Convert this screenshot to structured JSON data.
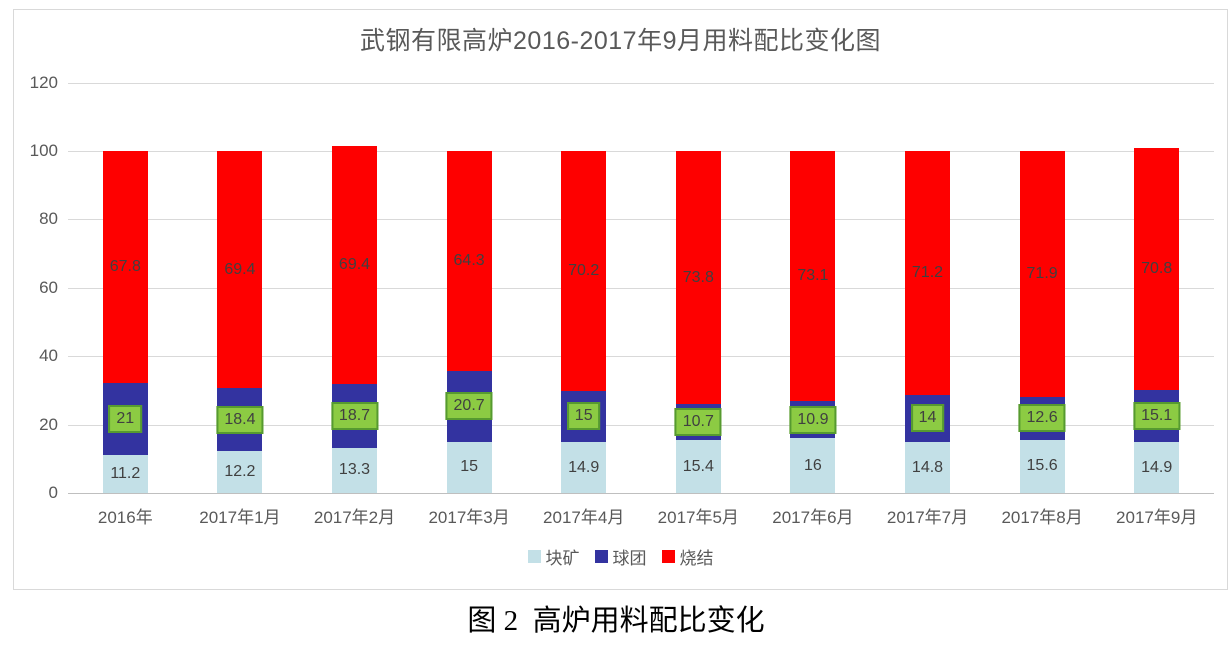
{
  "chart_data": {
    "type": "bar",
    "stacked": true,
    "title": "武钢有限高炉2016-2017年9月用料配比变化图",
    "caption": "图 2  高炉用料配比变化",
    "categories": [
      "2016年",
      "2017年1月",
      "2017年2月",
      "2017年3月",
      "2017年4月",
      "2017年5月",
      "2017年6月",
      "2017年7月",
      "2017年8月",
      "2017年9月"
    ],
    "series": [
      {
        "name": "块矿",
        "color": "#c3e0e7",
        "label_color": "#404040",
        "values": [
          11.2,
          12.2,
          13.3,
          15,
          14.9,
          15.4,
          16,
          14.8,
          15.6,
          14.9
        ]
      },
      {
        "name": "球团",
        "color": "#3333a0",
        "label_color": "#404040",
        "label_bg": "#8ccb43",
        "label_border": "#569a30",
        "values": [
          21,
          18.4,
          18.7,
          20.7,
          15,
          10.7,
          10.9,
          14,
          12.6,
          15.1
        ]
      },
      {
        "name": "烧结",
        "color": "#fe0000",
        "label_color": "#404040",
        "values": [
          67.8,
          69.4,
          69.4,
          64.3,
          70.2,
          73.8,
          73.1,
          71.2,
          71.9,
          70.8
        ]
      }
    ],
    "y_axis": {
      "min": 0,
      "max": 120,
      "ticks": [
        0,
        20,
        40,
        60,
        80,
        100,
        120
      ]
    },
    "legend": [
      "块矿",
      "球团",
      "烧结"
    ],
    "legend_position": "bottom",
    "grid": true
  }
}
